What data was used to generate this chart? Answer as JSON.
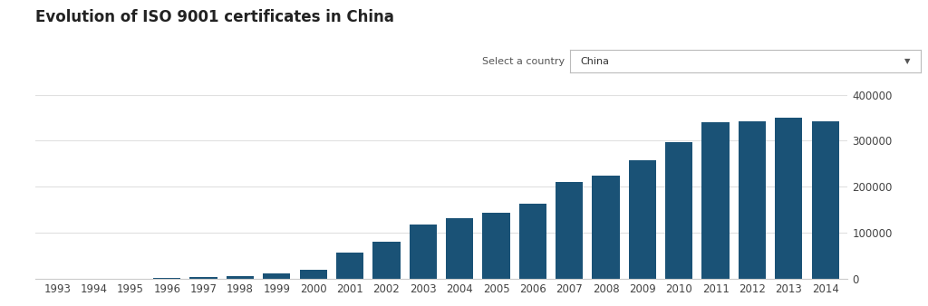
{
  "title": "Evolution of ISO 9001 certificates in China",
  "dropdown_label": "Select a country",
  "dropdown_value": "China",
  "years": [
    1993,
    1994,
    1995,
    1996,
    1997,
    1998,
    1999,
    2000,
    2001,
    2002,
    2003,
    2004,
    2005,
    2006,
    2007,
    2008,
    2009,
    2010,
    2011,
    2012,
    2013,
    2014
  ],
  "values": [
    0,
    0,
    0,
    1200,
    3500,
    6000,
    11000,
    19000,
    57000,
    81000,
    117000,
    132000,
    143000,
    162000,
    210000,
    224000,
    257000,
    297000,
    341000,
    342000,
    350000,
    342800
  ],
  "bar_color": "#1a5276",
  "background_color": "#ffffff",
  "plot_bg_color": "#ffffff",
  "grid_color": "#e0e0e0",
  "ylim": [
    0,
    400000
  ],
  "yticks": [
    0,
    100000,
    200000,
    300000,
    400000
  ],
  "ytick_labels": [
    "0",
    "100000",
    "200000",
    "300000",
    "400000"
  ],
  "title_fontsize": 12,
  "tick_fontsize": 8.5,
  "dropdown_fontsize": 8,
  "bar_width": 0.75
}
